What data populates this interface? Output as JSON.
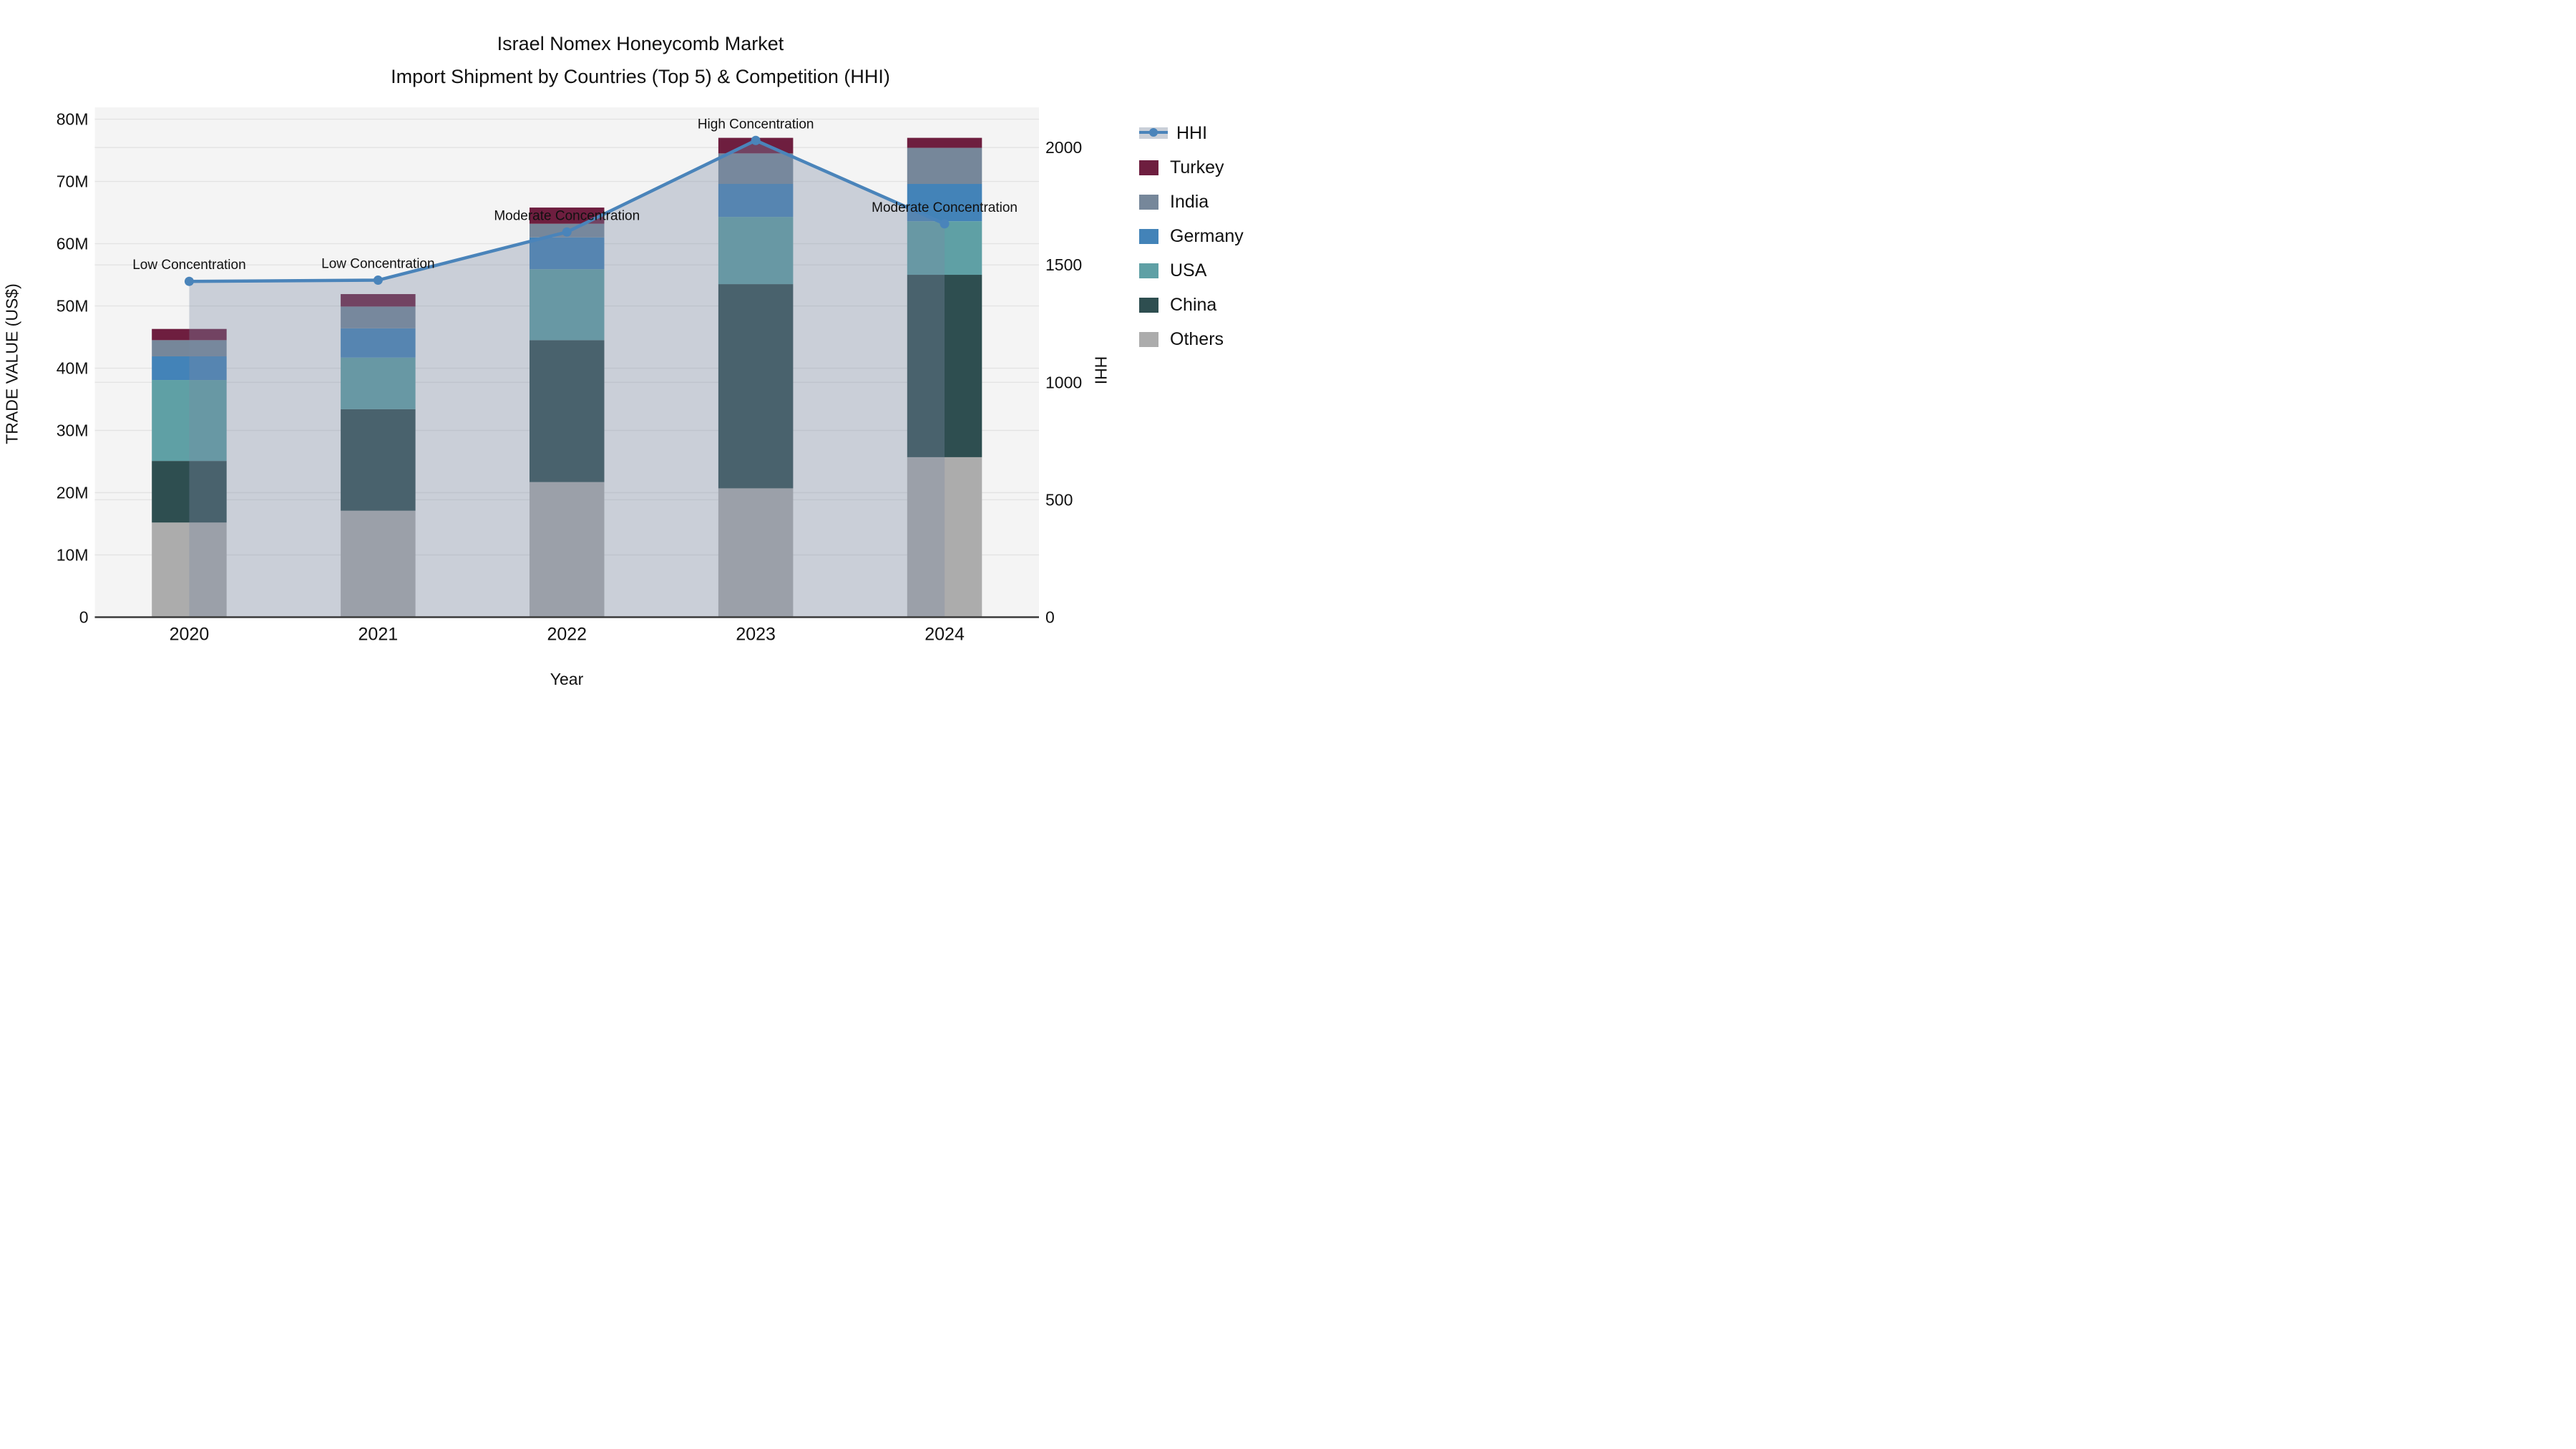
{
  "chart_data": {
    "type": "bar+line",
    "title_line1": "Israel Nomex Honeycomb Market",
    "title_line2": "Import Shipment by Countries (Top 5) & Competition (HHI)",
    "x": [
      "2020",
      "2021",
      "2022",
      "2023",
      "2024"
    ],
    "xlabel": "Year",
    "y_left_label": "TRADE VALUE (US$)",
    "y_right_label": "HHI",
    "y_left_ticks": [
      {
        "value": 0,
        "label": "0"
      },
      {
        "value": 10,
        "label": "10M"
      },
      {
        "value": 20,
        "label": "20M"
      },
      {
        "value": 30,
        "label": "30M"
      },
      {
        "value": 40,
        "label": "40M"
      },
      {
        "value": 50,
        "label": "50M"
      },
      {
        "value": 60,
        "label": "60M"
      },
      {
        "value": 70,
        "label": "70M"
      },
      {
        "value": 80,
        "label": "80M"
      }
    ],
    "y_left_units": "millions US$",
    "y_left_range": [
      0,
      81.9
    ],
    "y_right_ticks": [
      {
        "value": 0,
        "label": "0"
      },
      {
        "value": 500,
        "label": "500"
      },
      {
        "value": 1000,
        "label": "1000"
      },
      {
        "value": 1500,
        "label": "1500"
      },
      {
        "value": 2000,
        "label": "2000"
      }
    ],
    "y_right_range": [
      0,
      2171
    ],
    "grid": true,
    "legend_position": "right",
    "stack_order_bottom_to_top": [
      "Others",
      "China",
      "USA",
      "Germany",
      "India",
      "Turkey"
    ],
    "series": [
      {
        "name": "Others",
        "color": "#ACACAC",
        "values": [
          15.2,
          17.1,
          21.7,
          20.7,
          25.7
        ]
      },
      {
        "name": "China",
        "color": "#2E4E50",
        "values": [
          9.9,
          16.3,
          22.8,
          32.8,
          29.3
        ]
      },
      {
        "name": "USA",
        "color": "#5FA0A5",
        "values": [
          13.0,
          8.3,
          11.4,
          10.8,
          8.6
        ]
      },
      {
        "name": "Germany",
        "color": "#4383B8",
        "values": [
          3.8,
          4.7,
          5.1,
          5.3,
          6.0
        ]
      },
      {
        "name": "India",
        "color": "#76879A",
        "values": [
          2.6,
          3.5,
          2.2,
          4.9,
          5.8
        ]
      },
      {
        "name": "Turkey",
        "color": "#6E1E3F",
        "values": [
          1.8,
          2.0,
          2.6,
          2.5,
          1.6
        ]
      }
    ],
    "bar_totals": [
      46.3,
      51.9,
      65.8,
      77.0,
      77.0
    ],
    "hhi": {
      "name": "HHI",
      "line_color": "#4A84BA",
      "area_fill": "rgba(122,138,164,0.35)",
      "values": [
        1430,
        1435,
        1640,
        2030,
        1675
      ]
    },
    "annotations": [
      {
        "x": "2020",
        "text": "Low Concentration"
      },
      {
        "x": "2021",
        "text": "Low Concentration"
      },
      {
        "x": "2022",
        "text": "Moderate Concentration"
      },
      {
        "x": "2023",
        "text": "High Concentration"
      },
      {
        "x": "2024",
        "text": "Moderate Concentration"
      }
    ],
    "legend_order": [
      "HHI",
      "Turkey",
      "India",
      "Germany",
      "USA",
      "China",
      "Others"
    ],
    "colors": {
      "plot_background": "#F4F4F4",
      "gridline": "#E3E3E3",
      "axis_line": "#3A3A3A",
      "text": "#111111"
    }
  }
}
